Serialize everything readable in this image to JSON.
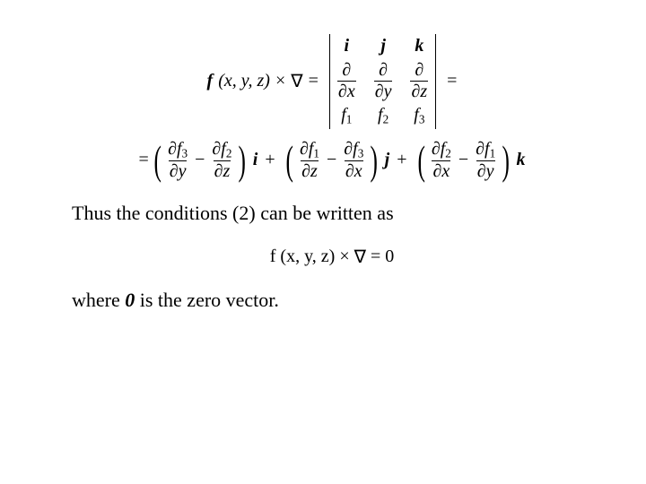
{
  "colors": {
    "text": "#000000",
    "background": "#ffffff"
  },
  "typography": {
    "body_family": "Times New Roman",
    "body_size_pt": 17,
    "math_size_pt": 15
  },
  "equations": {
    "curl_det": {
      "lhs": {
        "f": "f",
        "args": "(x, y, z)",
        "op": "×",
        "nabla": "∇",
        "eq": "="
      },
      "trailing_eq": "=",
      "headers": [
        "i",
        "j",
        "k"
      ],
      "row2": [
        {
          "num": "∂",
          "den_sym": "∂",
          "den_var": "x"
        },
        {
          "num": "∂",
          "den_sym": "∂",
          "den_var": "y"
        },
        {
          "num": "∂",
          "den_sym": "∂",
          "den_var": "z"
        }
      ],
      "row3": [
        {
          "base": "f",
          "sub": "1"
        },
        {
          "base": "f",
          "sub": "2"
        },
        {
          "base": "f",
          "sub": "3"
        }
      ]
    },
    "expanded": {
      "lead_eq": "=",
      "terms": [
        {
          "a": {
            "num_sym": "∂",
            "num_base": "f",
            "num_sub": "3",
            "den_sym": "∂",
            "den_var": "y"
          },
          "minus": "−",
          "b": {
            "num_sym": "∂",
            "num_base": "f",
            "num_sub": "2",
            "den_sym": "∂",
            "den_var": "z"
          },
          "vec": "i"
        },
        {
          "a": {
            "num_sym": "∂",
            "num_base": "f",
            "num_sub": "1",
            "den_sym": "∂",
            "den_var": "z"
          },
          "minus": "−",
          "b": {
            "num_sym": "∂",
            "num_base": "f",
            "num_sub": "3",
            "den_sym": "∂",
            "den_var": "x"
          },
          "vec": "j"
        },
        {
          "a": {
            "num_sym": "∂",
            "num_base": "f",
            "num_sub": "2",
            "den_sym": "∂",
            "den_var": "x"
          },
          "minus": "−",
          "b": {
            "num_sym": "∂",
            "num_base": "f",
            "num_sub": "1",
            "den_sym": "∂",
            "den_var": "y"
          },
          "vec": "k"
        }
      ],
      "plus": "+"
    },
    "zero": {
      "f": "f",
      "args": "(x, y, z)",
      "op": "×",
      "nabla": "∇",
      "eq": "=",
      "rhs": "0"
    }
  },
  "text": {
    "line1": "Thus the conditions (2) can be written as",
    "line2_pre": "where ",
    "line2_zero": "0",
    "line2_post": " is the zero vector."
  }
}
